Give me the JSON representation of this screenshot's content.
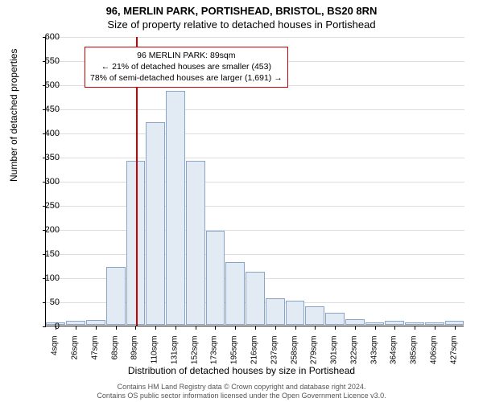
{
  "title_line1": "96, MERLIN PARK, PORTISHEAD, BRISTOL, BS20 8RN",
  "title_line2": "Size of property relative to detached houses in Portishead",
  "ylabel": "Number of detached properties",
  "xlabel": "Distribution of detached houses by size in Portishead",
  "footer_line1": "Contains HM Land Registry data © Crown copyright and database right 2024.",
  "footer_line2": "Contains OS public sector information licensed under the Open Government Licence v3.0.",
  "info_box": {
    "line1": "96 MERLIN PARK: 89sqm",
    "line2": "← 21% of detached houses are smaller (453)",
    "line3": "78% of semi-detached houses are larger (1,691) →"
  },
  "chart": {
    "type": "histogram",
    "ylim": [
      0,
      600
    ],
    "ytick_step": 50,
    "reference_x": 89,
    "reference_color": "#cc0000",
    "bar_fill": "#e2eaf4",
    "bar_border": "#8aa4c8",
    "grid_color": "#dddddd",
    "xticks": [
      "4sqm",
      "26sqm",
      "47sqm",
      "68sqm",
      "89sqm",
      "110sqm",
      "131sqm",
      "152sqm",
      "173sqm",
      "195sqm",
      "216sqm",
      "237sqm",
      "258sqm",
      "279sqm",
      "301sqm",
      "322sqm",
      "343sqm",
      "364sqm",
      "385sqm",
      "406sqm",
      "427sqm"
    ],
    "values": [
      5,
      8,
      10,
      120,
      340,
      420,
      485,
      340,
      195,
      130,
      110,
      55,
      50,
      38,
      25,
      12,
      5,
      8,
      5,
      5,
      8
    ]
  }
}
